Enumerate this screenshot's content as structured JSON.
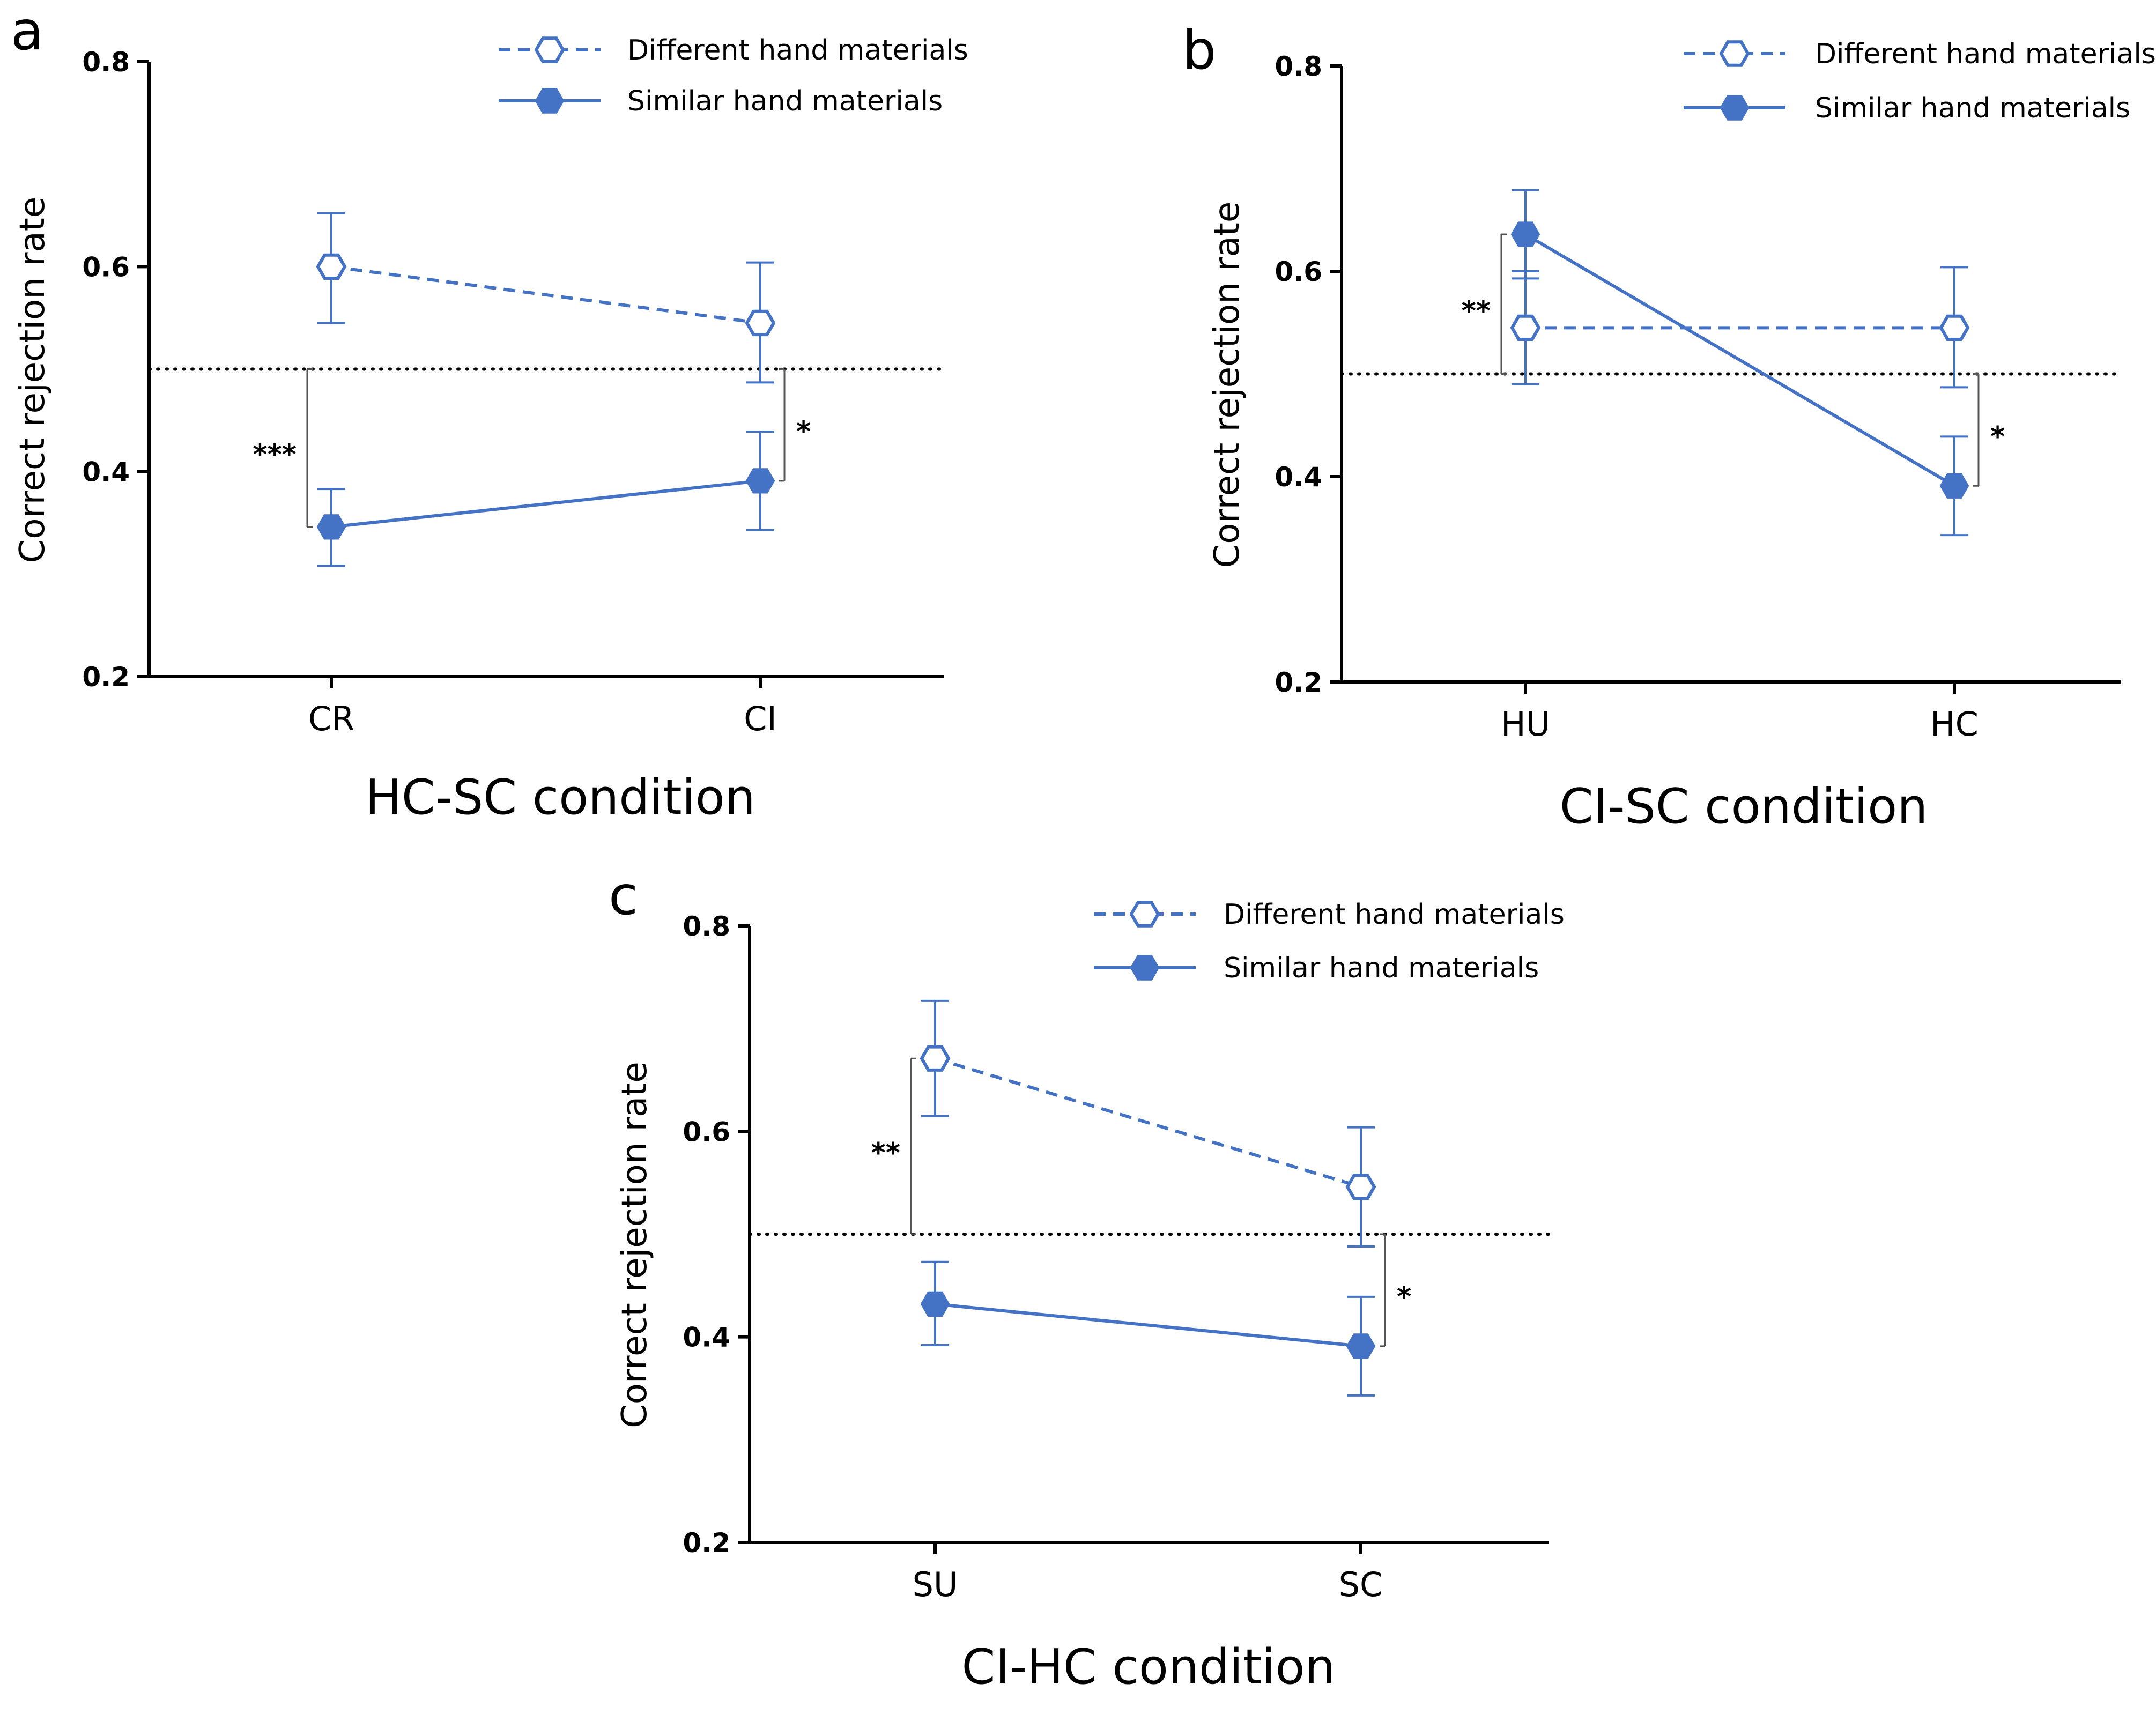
{
  "colors": {
    "series": "#4472C4",
    "axis": "#000000",
    "reference": "#000000"
  },
  "chart_data": [
    {
      "panel": "a",
      "type": "line",
      "xlabel": "HC-SC condition",
      "ylabel": "Correct rejection rate",
      "categories": [
        "CR",
        "CI"
      ],
      "ylim": [
        0.2,
        0.8
      ],
      "yticks": [
        "0.2",
        "0.4",
        "0.6",
        "0.8"
      ],
      "reference_line": 0.5,
      "legend": "top-right",
      "series": [
        {
          "name": "Different hand materials",
          "style": "dashed",
          "marker": "hexagon-open",
          "values": [
            0.6,
            0.545
          ],
          "err_low": [
            0.545,
            0.487
          ],
          "err_high": [
            0.652,
            0.604
          ]
        },
        {
          "name": "Similar hand materials",
          "style": "solid",
          "marker": "hexagon-filled",
          "values": [
            0.346,
            0.391
          ],
          "err_low": [
            0.308,
            0.343
          ],
          "err_high": [
            0.383,
            0.439
          ]
        }
      ],
      "annotations": [
        {
          "label": "***",
          "category_index": 0,
          "from": 0.5,
          "to": 0.346,
          "side": "left"
        },
        {
          "label": "*",
          "category_index": 1,
          "from": 0.5,
          "to": 0.391,
          "side": "right"
        }
      ]
    },
    {
      "panel": "b",
      "type": "line",
      "xlabel": "CI-SC condition",
      "ylabel": "Correct rejection rate",
      "categories": [
        "HU",
        "HC"
      ],
      "ylim": [
        0.2,
        0.8
      ],
      "yticks": [
        "0.2",
        "0.4",
        "0.6",
        "0.8"
      ],
      "reference_line": 0.5,
      "legend": "top-right",
      "series": [
        {
          "name": "Different hand materials",
          "style": "dashed",
          "marker": "hexagon-open",
          "values": [
            0.545,
            0.545
          ],
          "err_low": [
            0.49,
            0.487
          ],
          "err_high": [
            0.6,
            0.604
          ]
        },
        {
          "name": "Similar hand materials",
          "style": "solid",
          "marker": "hexagon-filled",
          "values": [
            0.636,
            0.391
          ],
          "err_low": [
            0.593,
            0.343
          ],
          "err_high": [
            0.679,
            0.439
          ]
        }
      ],
      "annotations": [
        {
          "label": "**",
          "category_index": 0,
          "from": 0.636,
          "to": 0.5,
          "side": "left"
        },
        {
          "label": "*",
          "category_index": 1,
          "from": 0.5,
          "to": 0.391,
          "side": "right"
        }
      ]
    },
    {
      "panel": "c",
      "type": "line",
      "xlabel": "CI-HC condition",
      "ylabel": "Correct rejection rate",
      "categories": [
        "SU",
        "SC"
      ],
      "ylim": [
        0.2,
        0.8
      ],
      "yticks": [
        "0.2",
        "0.4",
        "0.6",
        "0.8"
      ],
      "reference_line": 0.5,
      "legend": "top-right",
      "series": [
        {
          "name": "Different hand materials",
          "style": "dashed",
          "marker": "hexagon-open",
          "values": [
            0.671,
            0.546
          ],
          "err_low": [
            0.615,
            0.488
          ],
          "err_high": [
            0.727,
            0.604
          ]
        },
        {
          "name": "Similar hand materials",
          "style": "solid",
          "marker": "hexagon-filled",
          "values": [
            0.432,
            0.391
          ],
          "err_low": [
            0.392,
            0.343
          ],
          "err_high": [
            0.473,
            0.439
          ]
        }
      ],
      "annotations": [
        {
          "label": "**",
          "category_index": 0,
          "from": 0.671,
          "to": 0.5,
          "side": "left"
        },
        {
          "label": "*",
          "category_index": 1,
          "from": 0.5,
          "to": 0.391,
          "side": "right"
        }
      ]
    }
  ]
}
